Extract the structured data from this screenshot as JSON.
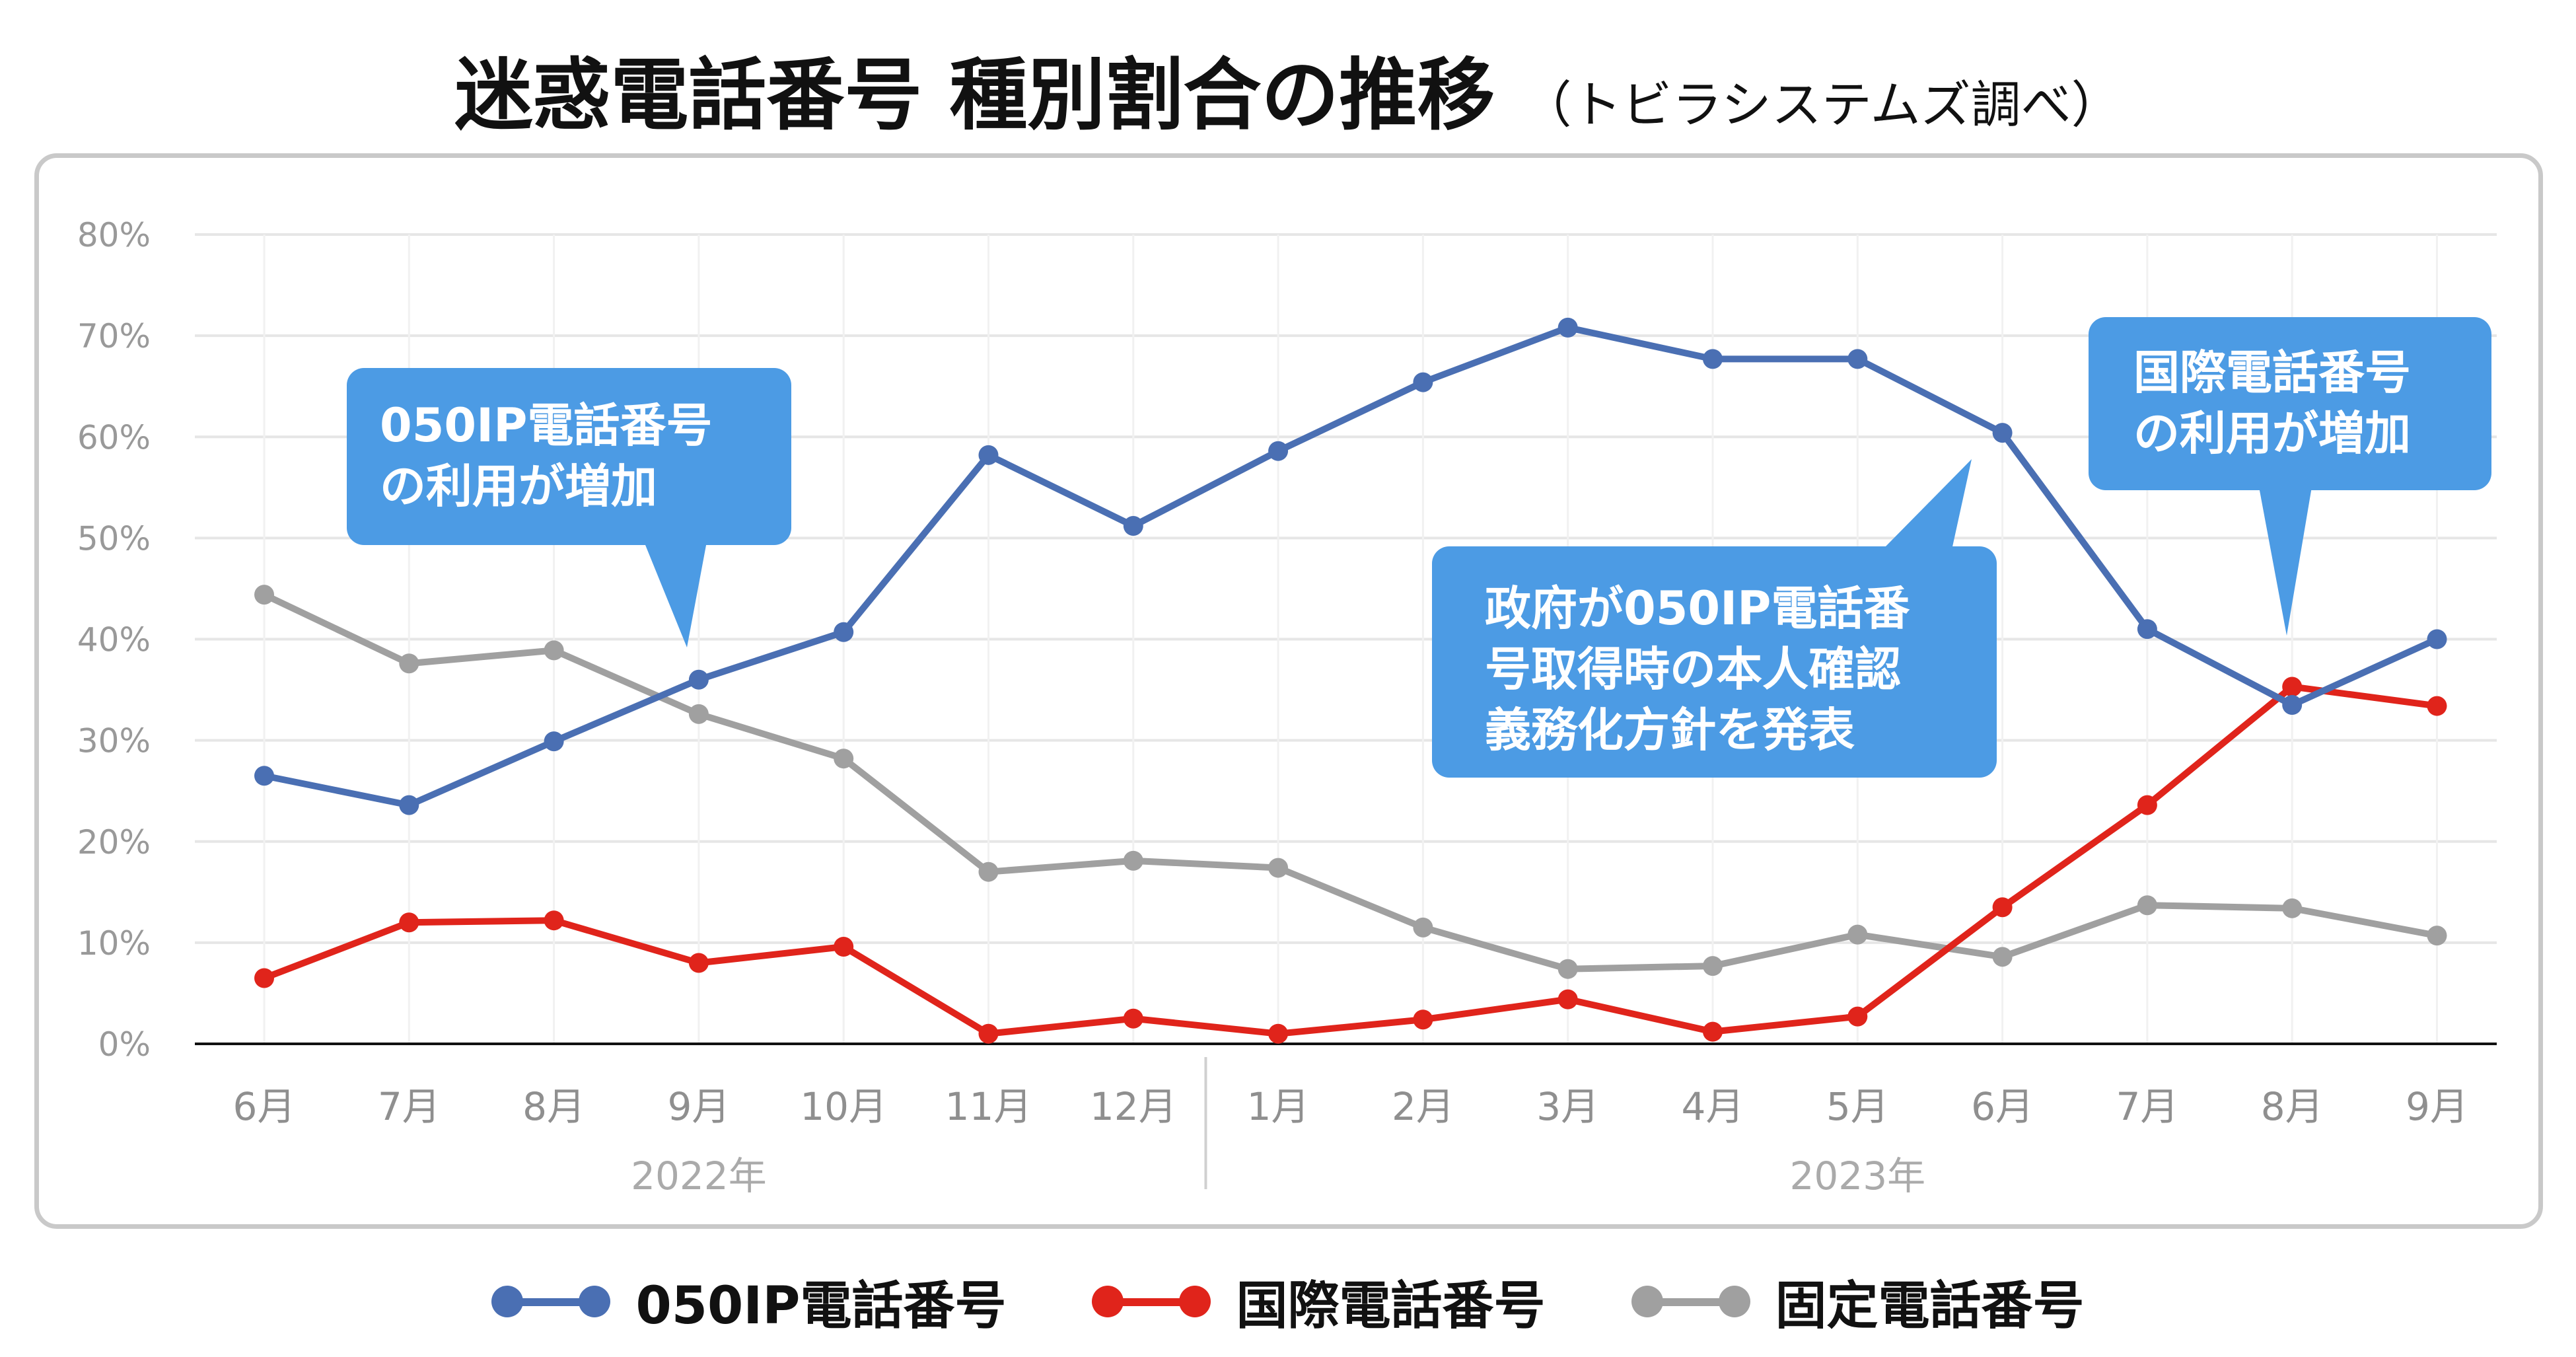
{
  "header": {
    "title": "迷惑電話番号 種別割合の推移",
    "subtitle": "（トビラシステムズ調べ）"
  },
  "colors": {
    "ip050": "#4a6fb3",
    "international": "#e0241b",
    "fixed": "#a0a0a0",
    "callout": "#4c9be4",
    "axis": "#111111",
    "grid": "#e6e6e6"
  },
  "chart_data": {
    "type": "line",
    "title": "迷惑電話番号 種別割合の推移",
    "subtitle": "（トビラシステムズ調べ）",
    "x": [
      "6月",
      "7月",
      "8月",
      "9月",
      "10月",
      "11月",
      "12月",
      "1月",
      "2月",
      "3月",
      "4月",
      "5月",
      "6月",
      "7月",
      "8月",
      "9月"
    ],
    "year_groups": [
      {
        "label": "2022年",
        "months": [
          "6月",
          "7月",
          "8月",
          "9月",
          "10月",
          "11月",
          "12月"
        ]
      },
      {
        "label": "2023年",
        "months": [
          "1月",
          "2月",
          "3月",
          "4月",
          "5月",
          "6月",
          "7月",
          "8月",
          "9月"
        ]
      }
    ],
    "yticks": [
      "0%",
      "10%",
      "20%",
      "30%",
      "40%",
      "50%",
      "60%",
      "70%",
      "80%"
    ],
    "ylim": [
      0,
      80
    ],
    "grid": true,
    "legend": "bottom",
    "series": [
      {
        "name": "050IP電話番号",
        "color": "#4a6fb3",
        "values": [
          26.5,
          23.6,
          29.9,
          36.0,
          40.7,
          58.2,
          51.2,
          58.6,
          65.4,
          70.8,
          67.7,
          67.7,
          60.4,
          41.0,
          33.5,
          40.0
        ]
      },
      {
        "name": "国際電話番号",
        "color": "#e0241b",
        "values": [
          6.5,
          12.0,
          12.2,
          8.0,
          9.6,
          1.0,
          2.5,
          1.0,
          2.4,
          4.4,
          1.2,
          2.7,
          13.5,
          23.6,
          35.3,
          33.4
        ]
      },
      {
        "name": "固定電話番号",
        "color": "#a0a0a0",
        "values": [
          44.4,
          37.6,
          38.9,
          32.6,
          28.2,
          17.0,
          18.1,
          17.4,
          11.5,
          7.4,
          7.7,
          10.8,
          8.6,
          13.7,
          13.4,
          10.7
        ]
      }
    ],
    "annotations": [
      {
        "lines": [
          "050IP電話番号",
          "の利用が増加"
        ]
      },
      {
        "lines": [
          "政府が050IP電話番",
          "号取得時の本人確認",
          "義務化方針を発表"
        ]
      },
      {
        "lines": [
          "国際電話番号",
          "の利用が増加"
        ]
      }
    ]
  }
}
